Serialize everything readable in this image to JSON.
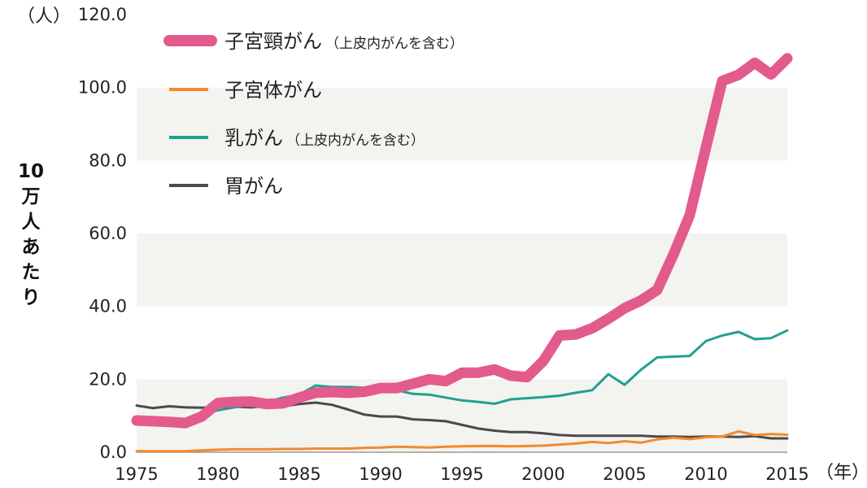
{
  "chart_data": {
    "type": "line",
    "ylabel": "10万人あたり",
    "y_unit": "（人）",
    "x_unit": "（年）",
    "ylim": [
      0,
      120
    ],
    "xlim": [
      1975,
      2015
    ],
    "y_ticks": [
      "0.0",
      "20.0",
      "40.0",
      "60.0",
      "80.0",
      "100.0",
      "120.0"
    ],
    "x_ticks": [
      "1975",
      "1980",
      "1985",
      "1990",
      "1995",
      "2000",
      "2005",
      "2010",
      "2015"
    ],
    "grid_bands": true,
    "legend_position": "top-left",
    "colors": {
      "band": "#f3f3ef",
      "axis": "#999999"
    },
    "series": [
      {
        "name": "子宮頸がん",
        "note": "（上皮内がんを含む）",
        "color": "#e35a8c",
        "width": 13,
        "points": [
          [
            1975,
            8.7
          ],
          [
            1976,
            8.5
          ],
          [
            1977,
            8.3
          ],
          [
            1978,
            8.0
          ],
          [
            1979,
            9.8
          ],
          [
            1980,
            13.5
          ],
          [
            1981,
            13.8
          ],
          [
            1982,
            13.9
          ],
          [
            1983,
            13.2
          ],
          [
            1984,
            13.4
          ],
          [
            1985,
            15.0
          ],
          [
            1986,
            16.3
          ],
          [
            1987,
            16.5
          ],
          [
            1988,
            16.3
          ],
          [
            1989,
            16.6
          ],
          [
            1990,
            17.6
          ],
          [
            1991,
            17.6
          ],
          [
            1992,
            18.8
          ],
          [
            1993,
            20.0
          ],
          [
            1994,
            19.5
          ],
          [
            1995,
            21.8
          ],
          [
            1996,
            21.8
          ],
          [
            1997,
            22.7
          ],
          [
            1998,
            21.0
          ],
          [
            1999,
            20.6
          ],
          [
            2000,
            25.0
          ],
          [
            2001,
            32.0
          ],
          [
            2002,
            32.3
          ],
          [
            2003,
            34.0
          ],
          [
            2004,
            36.6
          ],
          [
            2005,
            39.5
          ],
          [
            2006,
            41.6
          ],
          [
            2007,
            44.5
          ],
          [
            2008,
            54.2
          ],
          [
            2009,
            65.0
          ],
          [
            2010,
            83.6
          ],
          [
            2011,
            101.8
          ],
          [
            2012,
            103.5
          ],
          [
            2013,
            106.8
          ],
          [
            2014,
            103.6
          ],
          [
            2015,
            108.0
          ]
        ]
      },
      {
        "name": "子宮体がん",
        "color": "#f28a2e",
        "width": 3,
        "points": [
          [
            1975,
            0.3
          ],
          [
            1976,
            0.3
          ],
          [
            1977,
            0.3
          ],
          [
            1978,
            0.3
          ],
          [
            1979,
            0.5
          ],
          [
            1980,
            0.7
          ],
          [
            1981,
            0.8
          ],
          [
            1982,
            0.8
          ],
          [
            1983,
            0.8
          ],
          [
            1984,
            0.9
          ],
          [
            1985,
            0.9
          ],
          [
            1986,
            1.0
          ],
          [
            1987,
            1.0
          ],
          [
            1988,
            1.0
          ],
          [
            1989,
            1.2
          ],
          [
            1990,
            1.3
          ],
          [
            1991,
            1.5
          ],
          [
            1992,
            1.4
          ],
          [
            1993,
            1.3
          ],
          [
            1994,
            1.5
          ],
          [
            1995,
            1.6
          ],
          [
            1996,
            1.7
          ],
          [
            1997,
            1.7
          ],
          [
            1998,
            1.6
          ],
          [
            1999,
            1.7
          ],
          [
            2000,
            1.8
          ],
          [
            2001,
            2.1
          ],
          [
            2002,
            2.4
          ],
          [
            2003,
            2.8
          ],
          [
            2004,
            2.5
          ],
          [
            2005,
            3.0
          ],
          [
            2006,
            2.6
          ],
          [
            2007,
            3.5
          ],
          [
            2008,
            4.0
          ],
          [
            2009,
            3.6
          ],
          [
            2010,
            4.1
          ],
          [
            2011,
            4.3
          ],
          [
            2012,
            5.7
          ],
          [
            2013,
            4.7
          ],
          [
            2014,
            5.0
          ],
          [
            2015,
            4.8
          ]
        ]
      },
      {
        "name": "乳がん",
        "note": "（上皮内がんを含む）",
        "color": "#20a090",
        "width": 3,
        "points": [
          [
            1975,
            8.2
          ],
          [
            1976,
            8.3
          ],
          [
            1977,
            8.5
          ],
          [
            1978,
            9.2
          ],
          [
            1979,
            10.3
          ],
          [
            1980,
            11.5
          ],
          [
            1981,
            12.3
          ],
          [
            1982,
            13.0
          ],
          [
            1983,
            13.8
          ],
          [
            1984,
            15.0
          ],
          [
            1985,
            15.8
          ],
          [
            1986,
            18.3
          ],
          [
            1987,
            17.9
          ],
          [
            1988,
            17.9
          ],
          [
            1989,
            17.7
          ],
          [
            1990,
            17.3
          ],
          [
            1991,
            17.0
          ],
          [
            1992,
            16.0
          ],
          [
            1993,
            15.8
          ],
          [
            1994,
            15.0
          ],
          [
            1995,
            14.2
          ],
          [
            1996,
            13.8
          ],
          [
            1997,
            13.3
          ],
          [
            1998,
            14.5
          ],
          [
            1999,
            14.8
          ],
          [
            2000,
            15.1
          ],
          [
            2001,
            15.5
          ],
          [
            2002,
            16.3
          ],
          [
            2003,
            17.0
          ],
          [
            2004,
            21.4
          ],
          [
            2005,
            18.5
          ],
          [
            2006,
            22.6
          ],
          [
            2007,
            26.0
          ],
          [
            2008,
            26.2
          ],
          [
            2009,
            26.4
          ],
          [
            2010,
            30.5
          ],
          [
            2011,
            32.0
          ],
          [
            2012,
            33.0
          ],
          [
            2013,
            31.0
          ],
          [
            2014,
            31.3
          ],
          [
            2015,
            33.4
          ]
        ]
      },
      {
        "name": "胃がん",
        "color": "#4a4a4a",
        "width": 3,
        "points": [
          [
            1975,
            12.8
          ],
          [
            1976,
            12.1
          ],
          [
            1977,
            12.6
          ],
          [
            1978,
            12.3
          ],
          [
            1979,
            12.2
          ],
          [
            1980,
            12.4
          ],
          [
            1981,
            12.5
          ],
          [
            1982,
            12.3
          ],
          [
            1983,
            12.6
          ],
          [
            1984,
            12.6
          ],
          [
            1985,
            13.2
          ],
          [
            1986,
            13.6
          ],
          [
            1987,
            13.0
          ],
          [
            1988,
            11.7
          ],
          [
            1989,
            10.3
          ],
          [
            1990,
            9.8
          ],
          [
            1991,
            9.8
          ],
          [
            1992,
            9.0
          ],
          [
            1993,
            8.8
          ],
          [
            1994,
            8.5
          ],
          [
            1995,
            7.5
          ],
          [
            1996,
            6.5
          ],
          [
            1997,
            5.9
          ],
          [
            1998,
            5.5
          ],
          [
            1999,
            5.5
          ],
          [
            2000,
            5.2
          ],
          [
            2001,
            4.7
          ],
          [
            2002,
            4.5
          ],
          [
            2003,
            4.5
          ],
          [
            2004,
            4.5
          ],
          [
            2005,
            4.5
          ],
          [
            2006,
            4.5
          ],
          [
            2007,
            4.3
          ],
          [
            2008,
            4.3
          ],
          [
            2009,
            4.2
          ],
          [
            2010,
            4.3
          ],
          [
            2011,
            4.3
          ],
          [
            2012,
            4.2
          ],
          [
            2013,
            4.4
          ],
          [
            2014,
            3.8
          ],
          [
            2015,
            3.8
          ]
        ]
      }
    ]
  }
}
